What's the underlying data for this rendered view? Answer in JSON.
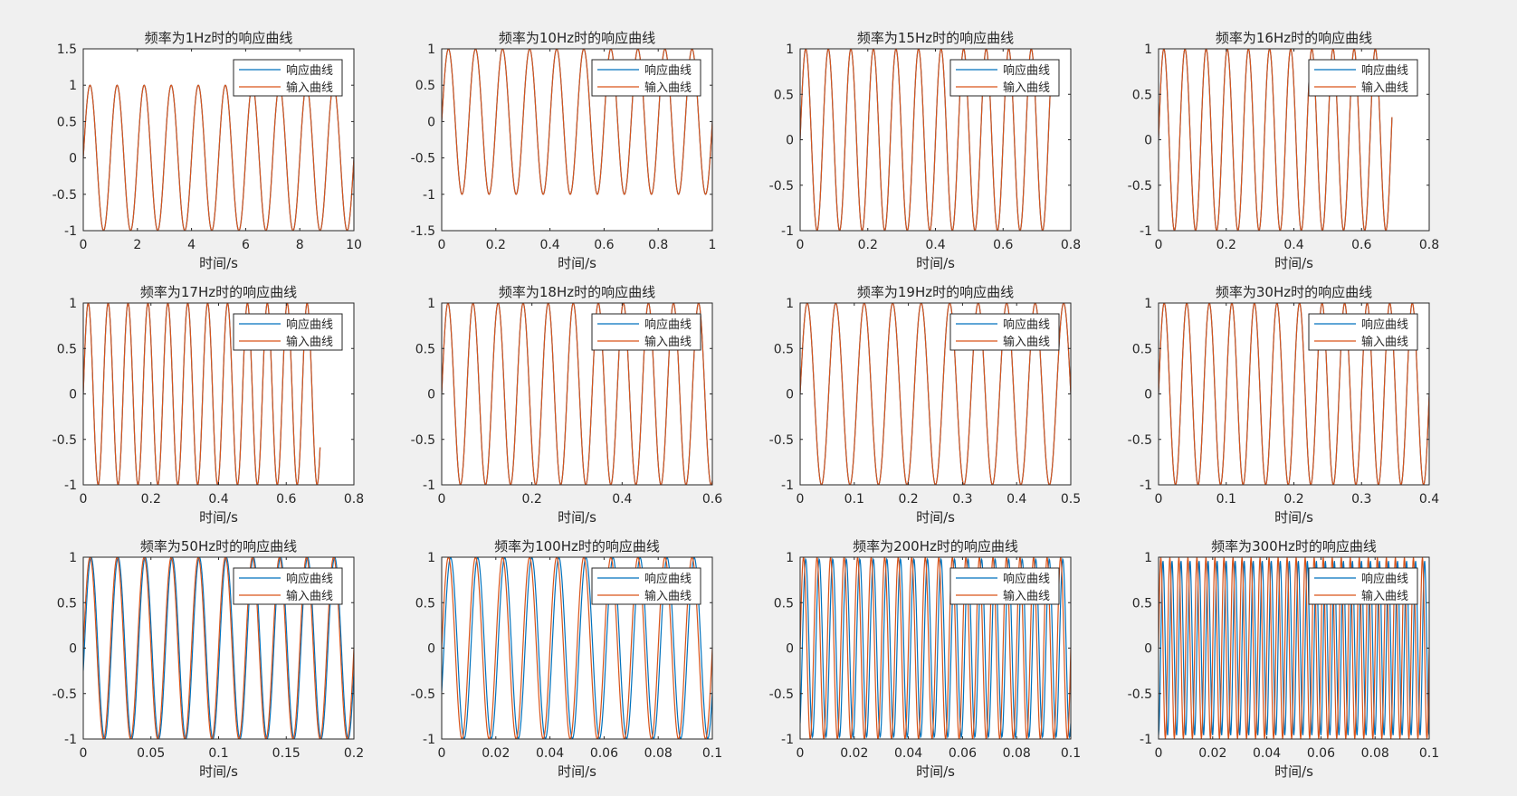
{
  "figure": {
    "background": "#f0f0f0",
    "axes_color": "#262626",
    "series_colors": [
      "#0072bd",
      "#d95319"
    ]
  },
  "chart_data": [
    {
      "type": "line",
      "title": "频率为1Hz时的响应曲线",
      "xlabel": "时间/s",
      "ylabel": "",
      "xlim": [
        0,
        10
      ],
      "ylim": [
        -1,
        1.5
      ],
      "freq": 1,
      "t_end": 10,
      "response_lag": 0.0,
      "response_amp": 1.0,
      "xticks": [
        "0",
        "2",
        "4",
        "6",
        "8",
        "10"
      ],
      "yticks": [
        "-1",
        "-0.5",
        "0",
        "0.5",
        "1",
        "1.5"
      ],
      "legend": [
        "响应曲线",
        "输入曲线"
      ],
      "legend_loc": "top-right",
      "grid": false
    },
    {
      "type": "line",
      "title": "频率为10Hz时的响应曲线",
      "xlabel": "时间/s",
      "ylabel": "",
      "xlim": [
        0,
        1
      ],
      "ylim": [
        -1.5,
        1
      ],
      "freq": 10,
      "t_end": 1,
      "response_lag": 0.0,
      "response_amp": 1.0,
      "xticks": [
        "0",
        "0.2",
        "0.4",
        "0.6",
        "0.8",
        "1"
      ],
      "yticks": [
        "-1.5",
        "-1",
        "-0.5",
        "0",
        "0.5",
        "1"
      ],
      "legend": [
        "响应曲线",
        "输入曲线"
      ],
      "legend_loc": "top-right",
      "grid": false
    },
    {
      "type": "line",
      "title": "频率为15Hz时的响应曲线",
      "xlabel": "时间/s",
      "ylabel": "",
      "xlim": [
        0,
        0.8
      ],
      "ylim": [
        -1,
        1
      ],
      "freq": 15,
      "t_end": 0.74,
      "response_lag": 0.0,
      "response_amp": 1.0,
      "xticks": [
        "0",
        "0.2",
        "0.4",
        "0.6",
        "0.8"
      ],
      "yticks": [
        "-1",
        "-0.5",
        "0",
        "0.5",
        "1"
      ],
      "legend": [
        "响应曲线",
        "输入曲线"
      ],
      "legend_loc": "top-right",
      "grid": false
    },
    {
      "type": "line",
      "title": "频率为16Hz时的响应曲线",
      "xlabel": "时间/s",
      "ylabel": "",
      "xlim": [
        0,
        0.8
      ],
      "ylim": [
        -1,
        1
      ],
      "freq": 16,
      "t_end": 0.69,
      "response_lag": 0.0,
      "response_amp": 1.0,
      "xticks": [
        "0",
        "0.2",
        "0.4",
        "0.6",
        "0.8"
      ],
      "yticks": [
        "-1",
        "-0.5",
        "0",
        "0.5",
        "1"
      ],
      "legend": [
        "响应曲线",
        "输入曲线"
      ],
      "legend_loc": "top-right",
      "grid": false
    },
    {
      "type": "line",
      "title": "频率为17Hz时的响应曲线",
      "xlabel": "时间/s",
      "ylabel": "",
      "xlim": [
        0,
        0.8
      ],
      "ylim": [
        -1,
        1
      ],
      "freq": 17,
      "t_end": 0.7,
      "response_lag": 0.0,
      "response_amp": 1.0,
      "xticks": [
        "0",
        "0.2",
        "0.4",
        "0.6",
        "0.8"
      ],
      "yticks": [
        "-1",
        "-0.5",
        "0",
        "0.5",
        "1"
      ],
      "legend": [
        "响应曲线",
        "输入曲线"
      ],
      "legend_loc": "top-right",
      "grid": false
    },
    {
      "type": "line",
      "title": "频率为18Hz时的响应曲线",
      "xlabel": "时间/s",
      "ylabel": "",
      "xlim": [
        0,
        0.6
      ],
      "ylim": [
        -1,
        1
      ],
      "freq": 18,
      "t_end": 0.6,
      "response_lag": 0.0,
      "response_amp": 1.0,
      "xticks": [
        "0",
        "0.2",
        "0.4",
        "0.6"
      ],
      "yticks": [
        "-1",
        "-0.5",
        "0",
        "0.5",
        "1"
      ],
      "legend": [
        "响应曲线",
        "输入曲线"
      ],
      "legend_loc": "top-right",
      "grid": false
    },
    {
      "type": "line",
      "title": "频率为19Hz时的响应曲线",
      "xlabel": "时间/s",
      "ylabel": "",
      "xlim": [
        0,
        0.5
      ],
      "ylim": [
        -1,
        1
      ],
      "freq": 19,
      "t_end": 0.5,
      "response_lag": 0.0,
      "response_amp": 1.0,
      "xticks": [
        "0",
        "0.1",
        "0.2",
        "0.3",
        "0.4",
        "0.5"
      ],
      "yticks": [
        "-1",
        "-0.5",
        "0",
        "0.5",
        "1"
      ],
      "legend": [
        "响应曲线",
        "输入曲线"
      ],
      "legend_loc": "top-right",
      "grid": false
    },
    {
      "type": "line",
      "title": "频率为30Hz时的响应曲线",
      "xlabel": "时间/s",
      "ylabel": "",
      "xlim": [
        0,
        0.4
      ],
      "ylim": [
        -1,
        1
      ],
      "freq": 30,
      "t_end": 0.4,
      "response_lag": 0.0,
      "response_amp": 1.0,
      "xticks": [
        "0",
        "0.1",
        "0.2",
        "0.3",
        "0.4"
      ],
      "yticks": [
        "-1",
        "-0.5",
        "0",
        "0.5",
        "1"
      ],
      "legend": [
        "响应曲线",
        "输入曲线"
      ],
      "legend_loc": "top-right",
      "grid": false
    },
    {
      "type": "line",
      "title": "频率为50Hz时的响应曲线",
      "xlabel": "时间/s",
      "ylabel": "",
      "xlim": [
        0,
        0.2
      ],
      "ylim": [
        -1,
        1
      ],
      "freq": 50,
      "t_end": 0.2,
      "response_lag": 0.0008,
      "response_amp": 0.999,
      "xticks": [
        "0",
        "0.05",
        "0.1",
        "0.15",
        "0.2"
      ],
      "yticks": [
        "-1",
        "-0.5",
        "0",
        "0.5",
        "1"
      ],
      "legend": [
        "响应曲线",
        "输入曲线"
      ],
      "legend_loc": "top-right",
      "grid": false
    },
    {
      "type": "line",
      "title": "频率为100Hz时的响应曲线",
      "xlabel": "时间/s",
      "ylabel": "",
      "xlim": [
        0,
        0.1
      ],
      "ylim": [
        -1,
        1
      ],
      "freq": 100,
      "t_end": 0.1,
      "response_lag": 0.0008,
      "response_amp": 0.995,
      "xticks": [
        "0",
        "0.02",
        "0.04",
        "0.06",
        "0.08",
        "0.1"
      ],
      "yticks": [
        "-1",
        "-0.5",
        "0",
        "0.5",
        "1"
      ],
      "legend": [
        "响应曲线",
        "输入曲线"
      ],
      "legend_loc": "top-right",
      "grid": false
    },
    {
      "type": "line",
      "title": "频率为200Hz时的响应曲线",
      "xlabel": "时间/s",
      "ylabel": "",
      "xlim": [
        0,
        0.1
      ],
      "ylim": [
        -1,
        1
      ],
      "freq": 200,
      "t_end": 0.1,
      "response_lag": 0.0008,
      "response_amp": 0.98,
      "xticks": [
        "0",
        "0.02",
        "0.04",
        "0.06",
        "0.08",
        "0.1"
      ],
      "yticks": [
        "-1",
        "-0.5",
        "0",
        "0.5",
        "1"
      ],
      "legend": [
        "响应曲线",
        "输入曲线"
      ],
      "legend_loc": "top-right",
      "grid": false
    },
    {
      "type": "line",
      "title": "频率为300Hz时的响应曲线",
      "xlabel": "时间/s",
      "ylabel": "",
      "xlim": [
        0,
        0.1
      ],
      "ylim": [
        -1,
        1
      ],
      "freq": 300,
      "t_end": 0.1,
      "response_lag": 0.0008,
      "response_amp": 0.96,
      "xticks": [
        "0",
        "0.02",
        "0.04",
        "0.06",
        "0.08",
        "0.1"
      ],
      "yticks": [
        "-1",
        "-0.5",
        "0",
        "0.5",
        "1"
      ],
      "legend": [
        "响应曲线",
        "输入曲线"
      ],
      "legend_loc": "top-right",
      "grid": false
    }
  ]
}
